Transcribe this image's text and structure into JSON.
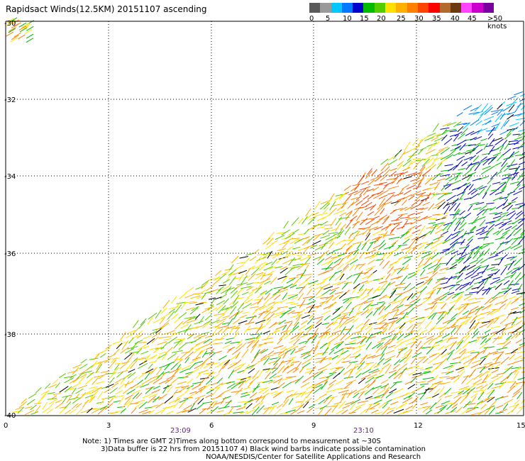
{
  "title": "Rapidsact Winds(12.5KM) 20151107 ascending",
  "wind_scale": {
    "colors": [
      "#5a5a5a",
      "#9a9a9a",
      "#00c8ff",
      "#0078ff",
      "#0000cc",
      "#00bb00",
      "#55cc00",
      "#ffe100",
      "#ffb000",
      "#ff8000",
      "#ff4400",
      "#ff0000",
      "#b36b2d",
      "#6b3a10",
      "#ff44ff",
      "#cc00cc",
      "#7a00a0"
    ],
    "labels": [
      "0",
      "5",
      "10",
      "15",
      "20",
      "25",
      "30",
      "35",
      "40",
      "45",
      ">50 knots"
    ]
  },
  "map": {
    "y_labels": [
      "-30",
      "-32",
      "-34",
      "-36",
      "-38",
      "-40"
    ],
    "x_labels": [
      "0",
      "3",
      "6",
      "9",
      "12",
      "15"
    ],
    "time_labels": [
      "23:09",
      "23:10"
    ]
  },
  "notes": {
    "line1": "Note: 1) Times are GMT 2)Times along bottom correspond to measurement at ~30S",
    "line2": "3)Data buffer is 22 hrs from 20151107 4) Black wind barbs indicate possible contamination",
    "line3": "NOAA/NESDIS/Center for Satellite Applications and Research"
  }
}
